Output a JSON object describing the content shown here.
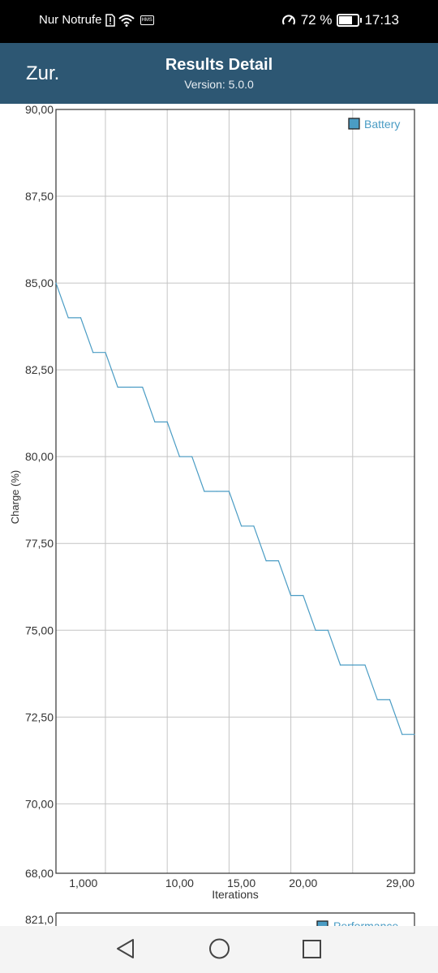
{
  "status": {
    "carrier": "Nur Notrufe",
    "hms": "HMS",
    "battery_text": "72 %",
    "battery_level": 0.72,
    "time": "17:13"
  },
  "header": {
    "back_label": "Zur.",
    "title": "Results Detail",
    "subtitle": "Version: 5.0.0"
  },
  "chart_data": {
    "type": "line",
    "ylabel": "Charge (%)",
    "xlabel": "Iterations",
    "ylim": [
      68,
      90
    ],
    "xlim": [
      0,
      29
    ],
    "y_ticks": [
      "90,00",
      "87,50",
      "85,00",
      "82,50",
      "80,00",
      "77,50",
      "75,00",
      "72,50",
      "70,00",
      "68,00"
    ],
    "x_ticks": [
      "1,000",
      "10,00",
      "15,00",
      "20,00",
      "29,00"
    ],
    "grid": true,
    "legend_position": "top-right",
    "series": [
      {
        "name": "Battery",
        "color": "#4a9cc4",
        "x": [
          0,
          1,
          2,
          3,
          4,
          5,
          6,
          7,
          8,
          9,
          10,
          11,
          12,
          13,
          14,
          15,
          16,
          17,
          18,
          19,
          20,
          21,
          22,
          23,
          24,
          25,
          26,
          27,
          28,
          29
        ],
        "values": [
          85,
          84,
          84,
          83,
          83,
          82,
          82,
          82,
          81,
          81,
          80,
          80,
          79,
          79,
          79,
          78,
          78,
          77,
          77,
          76,
          76,
          75,
          75,
          74,
          74,
          74,
          73,
          73,
          72,
          72
        ]
      }
    ]
  },
  "next_chart": {
    "y_top_label": "821,0",
    "legend_label": "Performance"
  },
  "navbar": {
    "back": "back-triangle",
    "home": "home-circle",
    "recents": "recents-square"
  }
}
